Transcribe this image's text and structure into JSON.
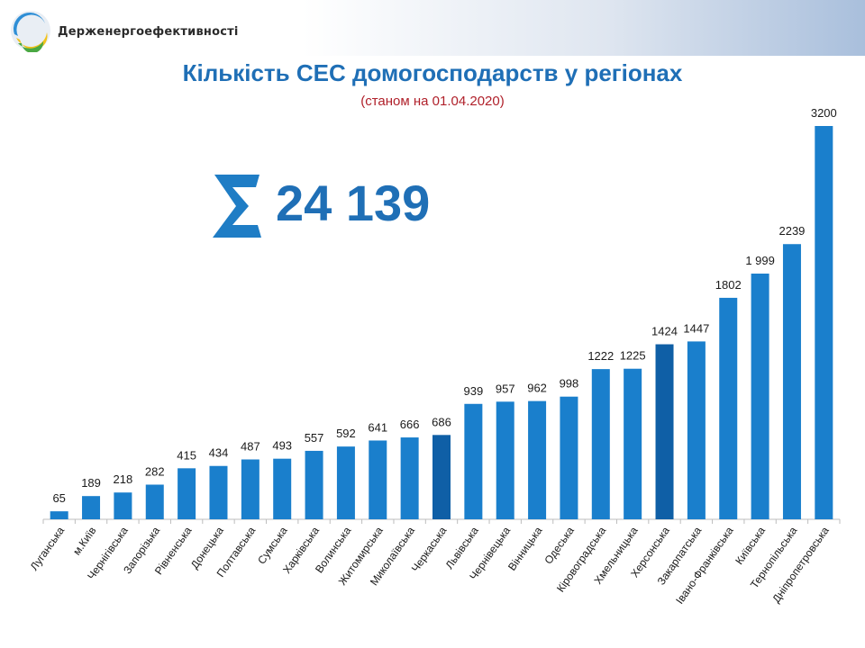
{
  "header": {
    "org_name": "Держенергоефективності"
  },
  "title": "Кількість СЕС домогосподарств у регіонах",
  "subtitle": "(станом на 01.04.2020)",
  "total": {
    "icon": "sigma-icon",
    "value": "24 139"
  },
  "colors": {
    "bar": "#1a7fcc",
    "bar_dark": "#0f5fa6",
    "title": "#1f6fb6",
    "subtitle": "#b0202a"
  },
  "chart_data": {
    "type": "bar",
    "categories": [
      "Луганська",
      "м.Київ",
      "Чернігівська",
      "Запорізька",
      "Рівненська",
      "Донецька",
      "Полтавська",
      "Сумська",
      "Харківська",
      "Волинська",
      "Житомирська",
      "Миколаївська",
      "Черкаська",
      "Львівська",
      "Чернівецька",
      "Вінницька",
      "Одеська",
      "Кіровоградська",
      "Хмельницька",
      "Херсонська",
      "Закарпатська",
      "Івано-Франківська",
      "Київська",
      "Тернопільська",
      "Дніпропетровська"
    ],
    "values": [
      65,
      189,
      218,
      282,
      415,
      434,
      487,
      493,
      557,
      592,
      641,
      666,
      686,
      939,
      957,
      962,
      998,
      1222,
      1225,
      1424,
      1447,
      1802,
      1999,
      2239,
      3200
    ],
    "value_labels": [
      "65",
      "189",
      "218",
      "282",
      "415",
      "434",
      "487",
      "493",
      "557",
      "592",
      "641",
      "666",
      "686",
      "939",
      "957",
      "962",
      "998",
      "1222",
      "1225",
      "1424",
      "1447",
      "1802",
      "1 999",
      "2239",
      "3200"
    ],
    "ylim": [
      0,
      3200
    ],
    "grid": false,
    "legend": "none"
  }
}
